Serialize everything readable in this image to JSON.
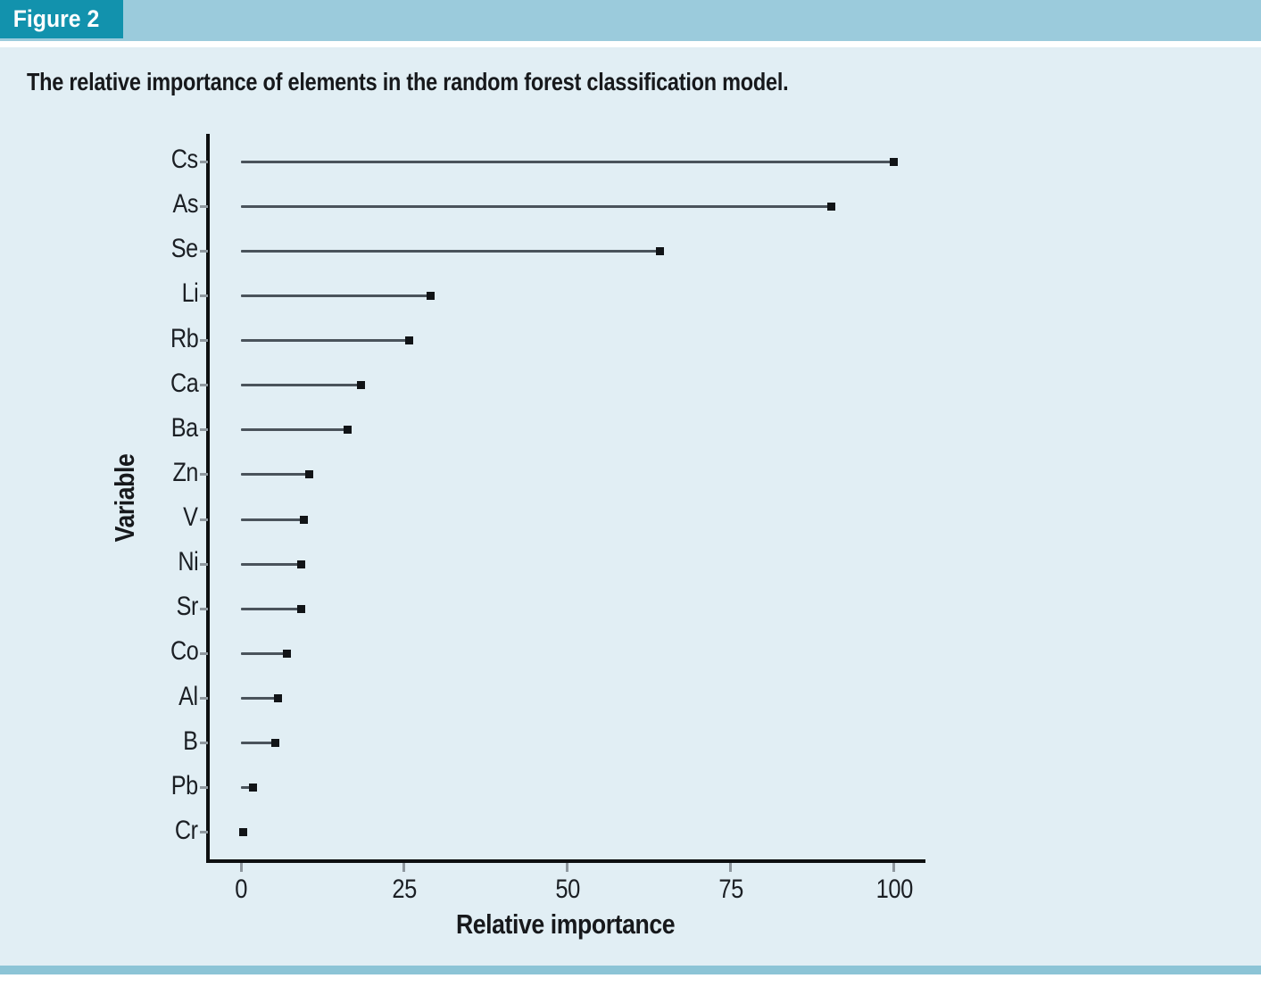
{
  "figure_label": "Figure 2",
  "title": "The relative importance of elements in the random forest classification model.",
  "chart_data": {
    "type": "bar",
    "style": "lollipop",
    "orientation": "horizontal",
    "categories": [
      "Cs",
      "As",
      "Se",
      "Li",
      "Rb",
      "Ca",
      "Ba",
      "Zn",
      "V",
      "Ni",
      "Sr",
      "Co",
      "Al",
      "B",
      "Pb",
      "Cr"
    ],
    "values": [
      100,
      90.4,
      64.2,
      29,
      25.8,
      18.4,
      16.3,
      10.5,
      9.7,
      9.2,
      9.2,
      7.1,
      5.7,
      5.3,
      1.8,
      0.3
    ],
    "title": "The relative importance of elements in the random forest classification model.",
    "xlabel": "Relative importance",
    "ylabel": "Variable",
    "xlim": [
      0,
      105
    ],
    "xticks": [
      0,
      25,
      50,
      75,
      100
    ],
    "grid": false,
    "legend": "none"
  },
  "colors": {
    "figure_chip_bg": "#1292ad",
    "figure_chip_text": "#ffffff",
    "header_band": "#9bcbdc",
    "content_bg": "#e1eef4",
    "bottom_band": "#8cc4d6",
    "axis": "#0d0f10",
    "tick": "#8e979e",
    "stem": "#4a535b",
    "dot": "#111417",
    "text": "#17191c"
  }
}
